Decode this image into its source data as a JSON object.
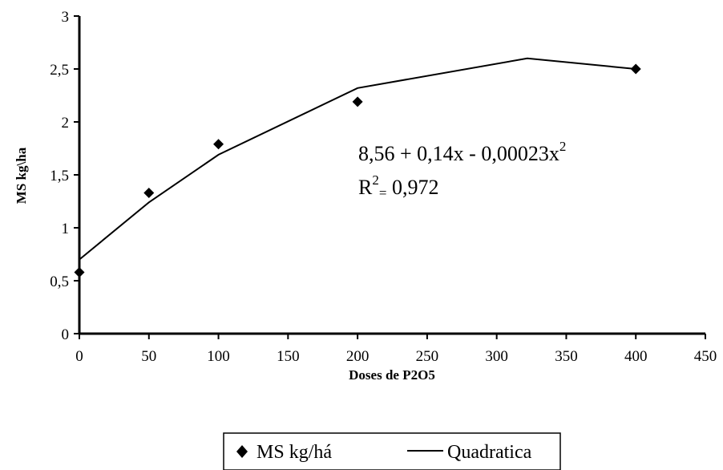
{
  "chart_data": {
    "type": "scatter",
    "xlabel": "Doses de P2O5",
    "ylabel": "MS kg\\ha",
    "xlim": [
      0,
      450
    ],
    "ylim": [
      0,
      3
    ],
    "x_ticks": [
      0,
      50,
      100,
      150,
      200,
      250,
      300,
      350,
      400,
      450
    ],
    "y_ticks": [
      0,
      0.5,
      1,
      1.5,
      2,
      2.5,
      3
    ],
    "x_tick_labels": [
      "0",
      "50",
      "100",
      "150",
      "200",
      "250",
      "300",
      "350",
      "400",
      "450"
    ],
    "y_tick_labels": [
      "0",
      "0,5",
      "1",
      "1,5",
      "2",
      "2,5",
      "3"
    ],
    "grid": false,
    "legend_position": "bottom",
    "series": [
      {
        "name": "MS kg/há",
        "kind": "markers",
        "marker": "diamond",
        "x": [
          0,
          50,
          100,
          200,
          400
        ],
        "y": [
          0.58,
          1.33,
          1.79,
          2.19,
          2.5
        ]
      },
      {
        "name": "Quadratica",
        "kind": "line",
        "x": [
          0,
          50,
          100,
          200,
          322,
          400
        ],
        "y": [
          0.7,
          1.24,
          1.69,
          2.32,
          2.6,
          2.5
        ]
      }
    ],
    "annotation": {
      "equation_main": "8,56 + 0,14x - 0,00023x",
      "equation_exp": "2",
      "r2_prefix": "R",
      "r2_exp": "2",
      "r2_sub": "=",
      "r2_value": " 0,972"
    },
    "colors": {
      "marker": "#000000",
      "line": "#000000",
      "axis": "#000000"
    }
  }
}
